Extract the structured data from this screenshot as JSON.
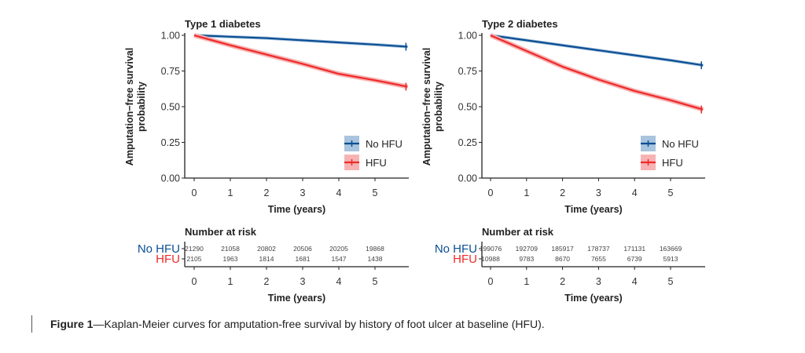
{
  "colors": {
    "no_hfu": "#0b4f94",
    "hfu": "#ee2a2a",
    "no_hfu_band": "#a9c4de",
    "hfu_band": "#f7b3b3"
  },
  "chart_data": [
    {
      "type": "line",
      "title": "Type 1 diabetes",
      "xlabel": "Time (years)",
      "ylabel": [
        "Amputation−free survival",
        "probability"
      ],
      "xlim": [
        0,
        5.9
      ],
      "ylim": [
        0,
        1
      ],
      "xticks": [
        "0",
        "1",
        "2",
        "3",
        "4",
        "5"
      ],
      "yticks": [
        "0.00",
        "0.25",
        "0.50",
        "0.75",
        "1.00"
      ],
      "legend": "bottom-right",
      "series": [
        {
          "name": "No HFU",
          "x": [
            0,
            1,
            2,
            3,
            4,
            5,
            5.9
          ],
          "y": [
            1.0,
            0.99,
            0.98,
            0.965,
            0.95,
            0.935,
            0.92
          ]
        },
        {
          "name": "HFU",
          "x": [
            0,
            1,
            2,
            3,
            4,
            5,
            5.9
          ],
          "y": [
            1.0,
            0.93,
            0.865,
            0.8,
            0.73,
            0.685,
            0.64
          ]
        }
      ],
      "risk_table": {
        "title": "Number at risk",
        "xlabel": "Time (years)",
        "rows": [
          {
            "name": "No HFU",
            "values": [
              "21290",
              "21058",
              "20802",
              "20506",
              "20205",
              "19868"
            ]
          },
          {
            "name": "HFU",
            "values": [
              "2105",
              "1963",
              "1814",
              "1681",
              "1547",
              "1438"
            ]
          }
        ]
      }
    },
    {
      "type": "line",
      "title": "Type 2 diabetes",
      "xlabel": "Time (years)",
      "ylabel": [
        "Amputation−free survival",
        "probability"
      ],
      "xlim": [
        0,
        5.9
      ],
      "ylim": [
        0,
        1
      ],
      "xticks": [
        "0",
        "1",
        "2",
        "3",
        "4",
        "5"
      ],
      "yticks": [
        "0.00",
        "0.25",
        "0.50",
        "0.75",
        "1.00"
      ],
      "legend": "bottom-right",
      "series": [
        {
          "name": "No HFU",
          "x": [
            0,
            1,
            2,
            3,
            4,
            5,
            5.9
          ],
          "y": [
            1.0,
            0.965,
            0.93,
            0.895,
            0.86,
            0.825,
            0.79
          ]
        },
        {
          "name": "HFU",
          "x": [
            0,
            1,
            2,
            3,
            4,
            5,
            5.9
          ],
          "y": [
            1.0,
            0.89,
            0.78,
            0.69,
            0.61,
            0.545,
            0.48
          ]
        }
      ],
      "risk_table": {
        "title": "Number at risk",
        "xlabel": "Time (years)",
        "rows": [
          {
            "name": "No HFU",
            "values": [
              "199076",
              "192709",
              "185917",
              "178737",
              "171131",
              "163669"
            ]
          },
          {
            "name": "HFU",
            "values": [
              "10988",
              "9783",
              "8670",
              "7655",
              "6739",
              "5913"
            ]
          }
        ]
      }
    }
  ],
  "caption": {
    "label": "Figure 1",
    "text": "—Kaplan-Meier curves for amputation-free survival by history of foot ulcer at baseline (HFU)."
  }
}
